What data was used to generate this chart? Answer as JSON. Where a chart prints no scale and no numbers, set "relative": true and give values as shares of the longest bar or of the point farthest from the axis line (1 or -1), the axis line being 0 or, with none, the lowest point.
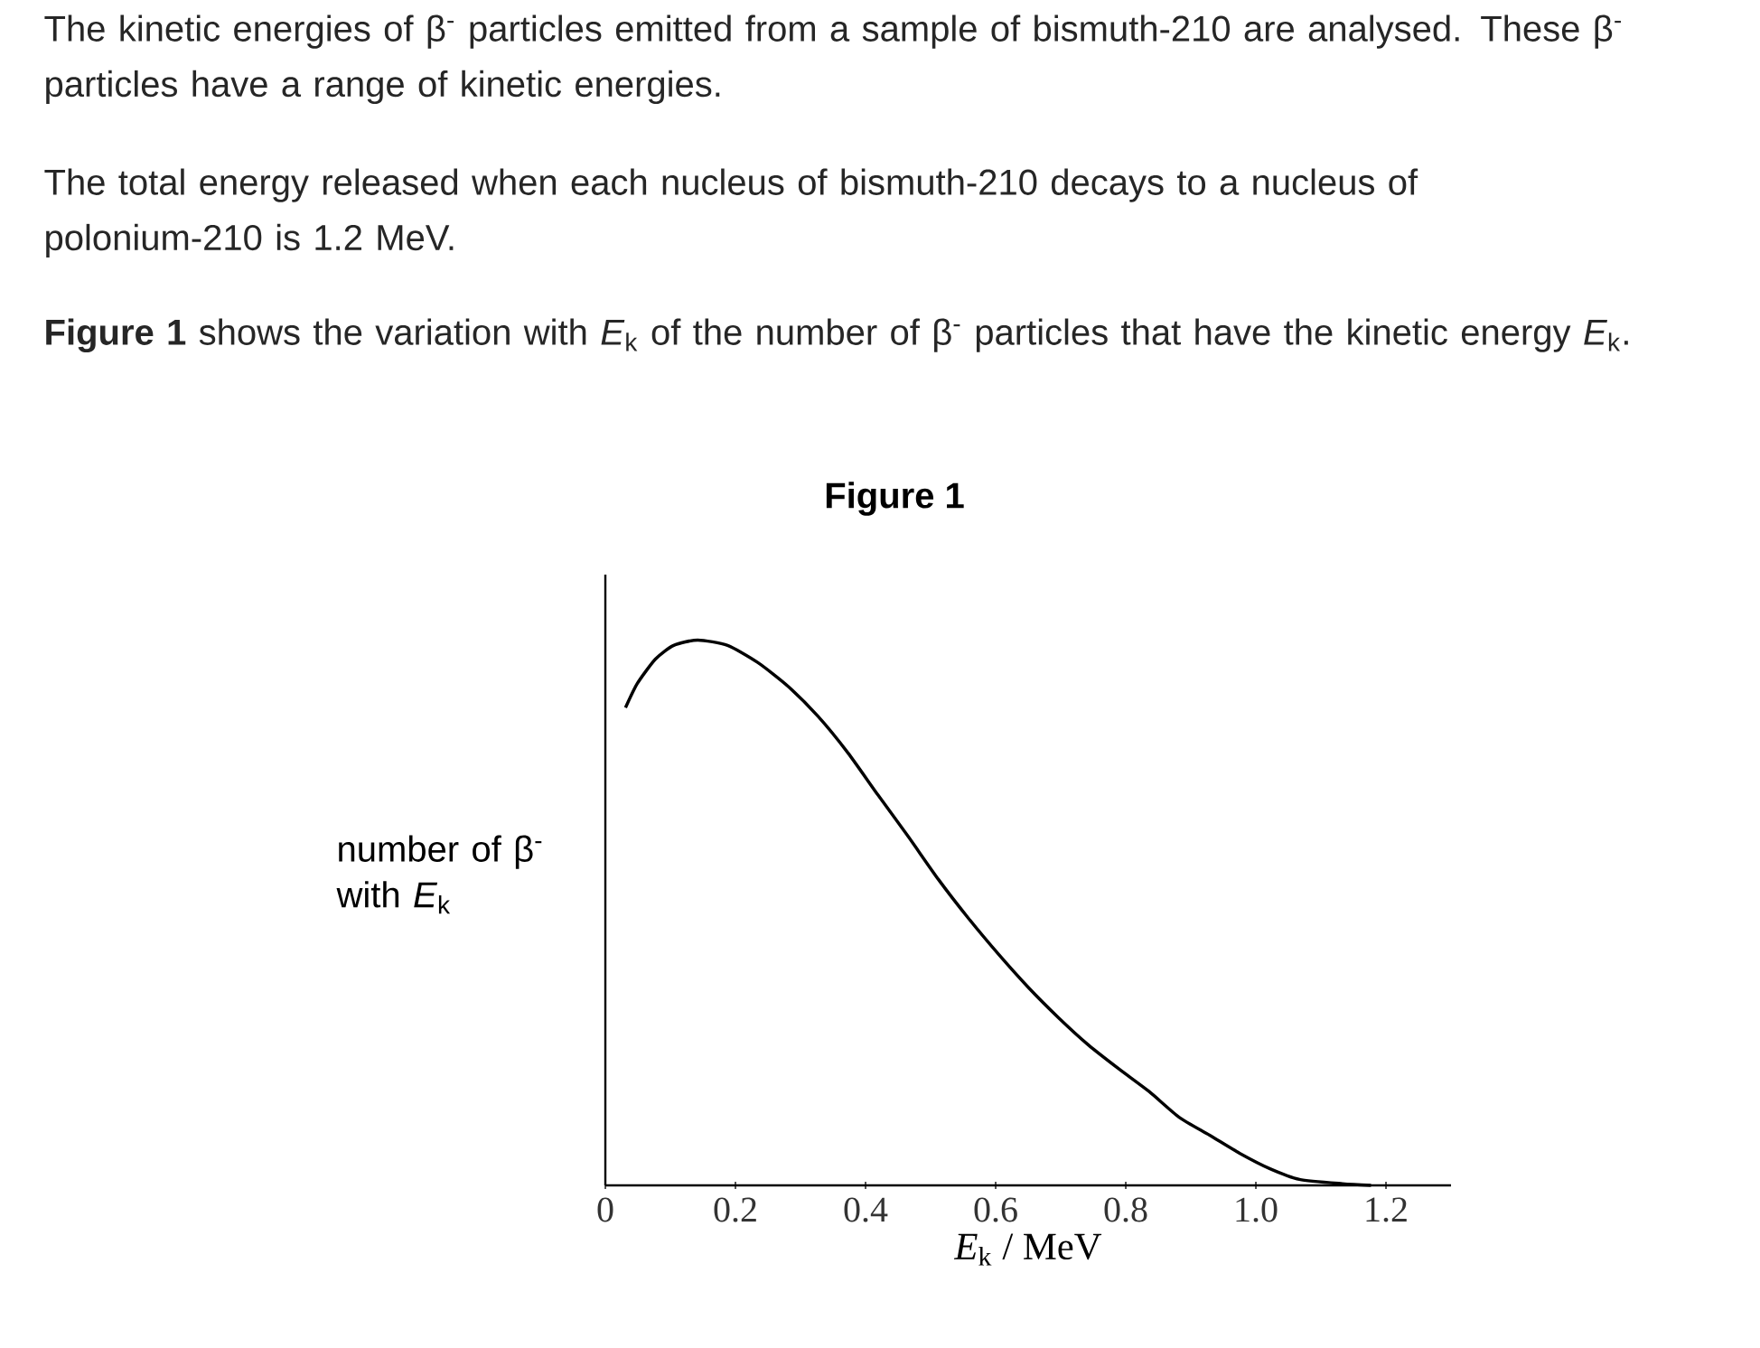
{
  "chart_data": {
    "type": "line",
    "relative": true,
    "title": "Figure 1",
    "annotations": [
      "The kinetic energies of β$^{-}$ particles emitted from a sample of bismuth-210 are analysed. These β$^{-}$ particles have a range of kinetic energies.",
      "The total energy released when each nucleus of bismuth-210 decays to a nucleus of polonium-210 is 1.2 MeV.",
      "**Figure 1** shows the variation with *E*$_{k}$ of the number of β$^{-}$ particles that have the kinetic energy *E*$_{k}$."
    ],
    "xlabel": "*E*$_{k}$ / MeV",
    "ylabel": "number of β$^{-}$ with *E*$_{k}$",
    "xlim": [
      0,
      1.3
    ],
    "xticks": [
      0,
      0.2,
      0.4,
      0.6,
      0.8,
      {
        "value": 1.0,
        "label": "1.0"
      },
      1.2
    ],
    "x": [
      0.031,
      0.049,
      0.077,
      0.105,
      0.142,
      0.188,
      0.234,
      0.281,
      0.327,
      0.373,
      0.419,
      0.466,
      0.512,
      0.558,
      0.605,
      0.651,
      0.697,
      0.743,
      0.79,
      0.836,
      0.882,
      0.929,
      0.975,
      1.021,
      1.067,
      1.133,
      1.177
    ],
    "values": [
      0.876,
      0.92,
      0.965,
      0.99,
      1.0,
      0.99,
      0.959,
      0.915,
      0.86,
      0.793,
      0.716,
      0.639,
      0.561,
      0.49,
      0.423,
      0.362,
      0.307,
      0.257,
      0.213,
      0.172,
      0.125,
      0.092,
      0.059,
      0.031,
      0.011,
      0.003,
      0
    ],
    "color": "#000000",
    "marker": "none",
    "line_style": "solid",
    "grid": false
  }
}
